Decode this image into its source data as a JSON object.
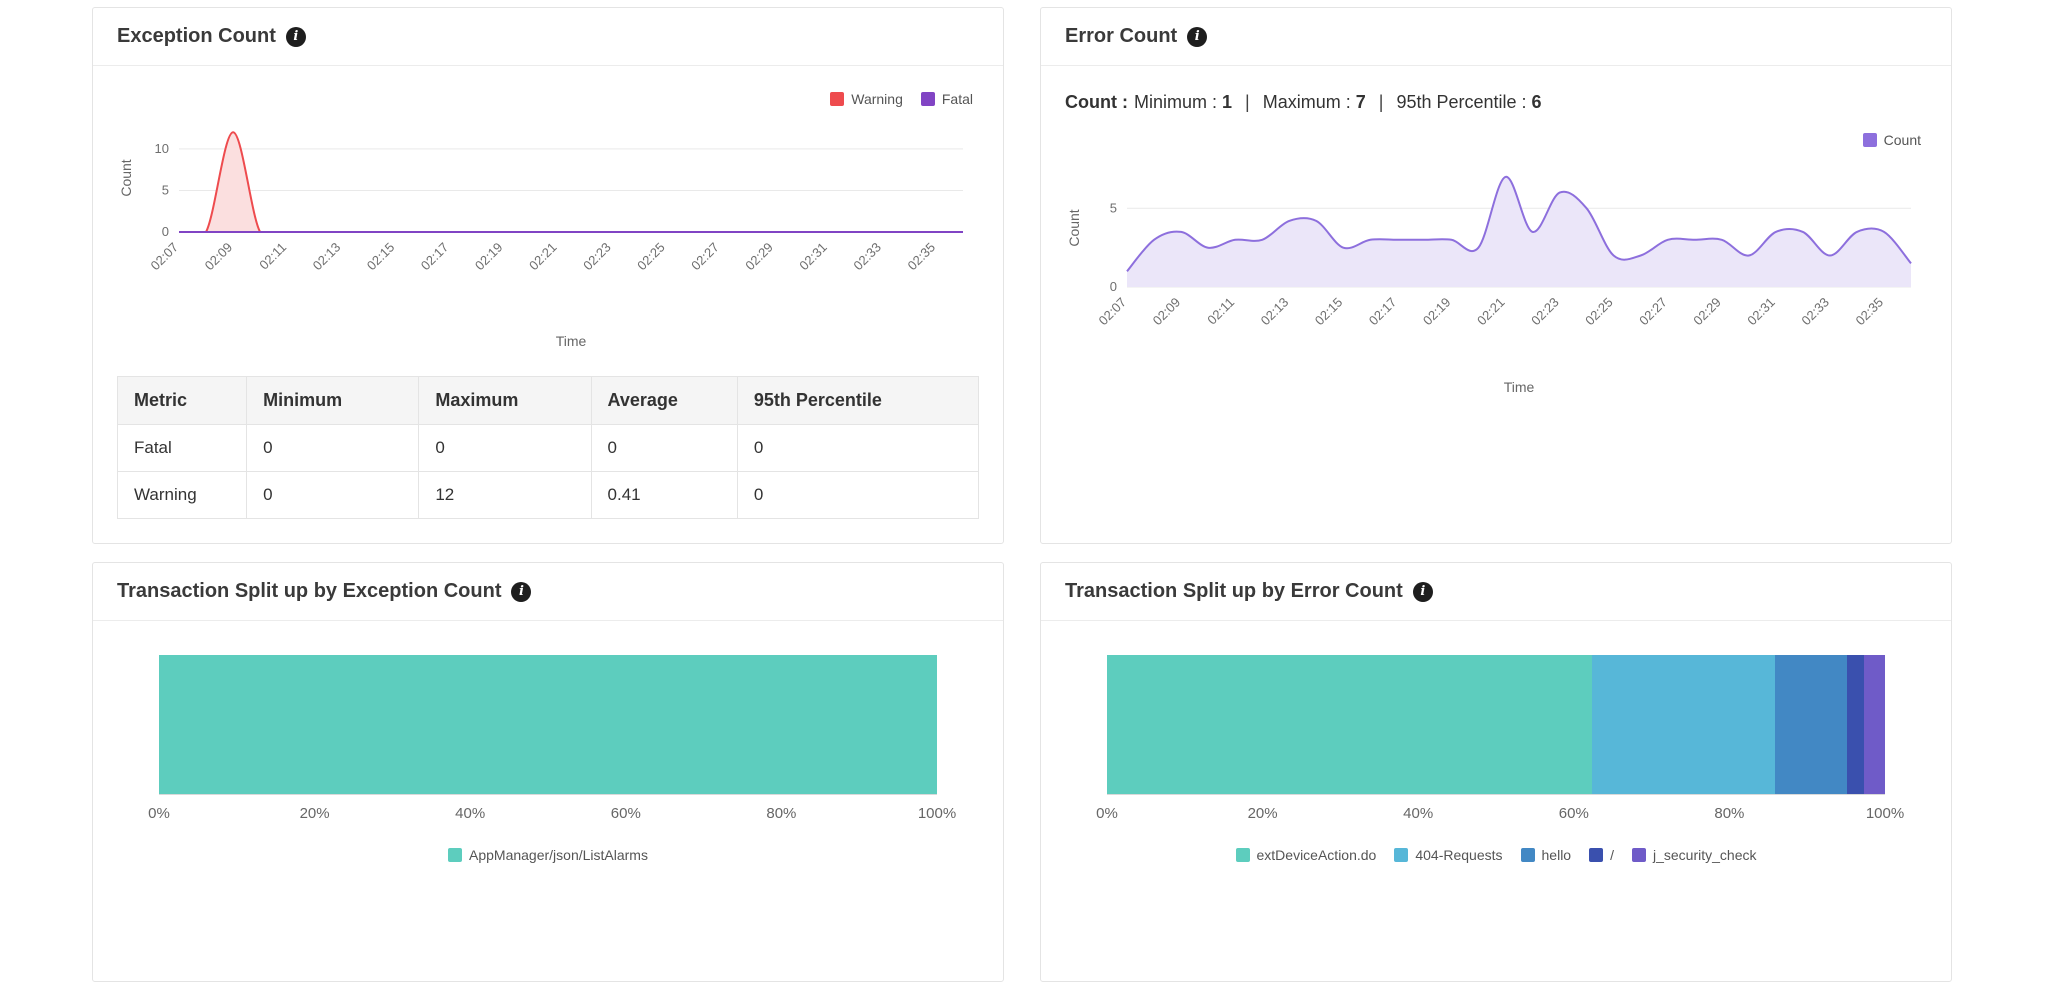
{
  "icons": {
    "info": "i"
  },
  "panels": {
    "exception": {
      "title": "Exception Count"
    },
    "error": {
      "title": "Error Count",
      "summary": {
        "metric_label": "Count :",
        "separator": "|",
        "items": [
          {
            "label": "Minimum :",
            "value": "1"
          },
          {
            "label": "Maximum :",
            "value": "7"
          },
          {
            "label": "95th Percentile :",
            "value": "6"
          }
        ]
      }
    },
    "exception_split": {
      "title": "Transaction Split up by Exception Count"
    },
    "error_split": {
      "title": "Transaction Split up by Error Count"
    }
  },
  "exception_table": {
    "headers": [
      "Metric",
      "Minimum",
      "Maximum",
      "Average",
      "95th Percentile"
    ],
    "rows": [
      [
        "Fatal",
        "0",
        "0",
        "0",
        "0"
      ],
      [
        "Warning",
        "0",
        "12",
        "0.41",
        "0"
      ]
    ]
  },
  "chart_data": [
    {
      "id": "exception-trend",
      "type": "area",
      "title": "Exception Count",
      "xlabel": "Time",
      "ylabel": "Count",
      "x": [
        "02:07",
        "02:08",
        "02:09",
        "02:10",
        "02:11",
        "02:12",
        "02:13",
        "02:14",
        "02:15",
        "02:16",
        "02:17",
        "02:18",
        "02:19",
        "02:20",
        "02:21",
        "02:22",
        "02:23",
        "02:24",
        "02:25",
        "02:26",
        "02:27",
        "02:28",
        "02:29",
        "02:30",
        "02:31",
        "02:32",
        "02:33",
        "02:34",
        "02:35",
        "02:36"
      ],
      "tick_every": 2,
      "yticks": [
        0,
        5,
        10
      ],
      "ylim": [
        0,
        13
      ],
      "grid": true,
      "legend_position": "top-right",
      "series": [
        {
          "name": "Warning",
          "color": "#ee4b4e",
          "fill": "#fbdfdf",
          "values": [
            0,
            0,
            12,
            0,
            0,
            0,
            0,
            0,
            0,
            0,
            0,
            0,
            0,
            0,
            0,
            0,
            0,
            0,
            0,
            0,
            0,
            0,
            0,
            0,
            0,
            0,
            0,
            0,
            0,
            0
          ]
        },
        {
          "name": "Fatal",
          "color": "#8144c4",
          "fill": "none",
          "values": [
            0,
            0,
            0,
            0,
            0,
            0,
            0,
            0,
            0,
            0,
            0,
            0,
            0,
            0,
            0,
            0,
            0,
            0,
            0,
            0,
            0,
            0,
            0,
            0,
            0,
            0,
            0,
            0,
            0,
            0
          ]
        }
      ]
    },
    {
      "id": "error-trend",
      "type": "area",
      "title": "Error Count",
      "xlabel": "Time",
      "ylabel": "Count",
      "x": [
        "02:07",
        "02:08",
        "02:09",
        "02:10",
        "02:11",
        "02:12",
        "02:13",
        "02:14",
        "02:15",
        "02:16",
        "02:17",
        "02:18",
        "02:19",
        "02:20",
        "02:21",
        "02:22",
        "02:23",
        "02:24",
        "02:25",
        "02:26",
        "02:27",
        "02:28",
        "02:29",
        "02:30",
        "02:31",
        "02:32",
        "02:33",
        "02:34",
        "02:35",
        "02:36"
      ],
      "tick_every": 2,
      "yticks": [
        0,
        5
      ],
      "ylim": [
        0,
        7.5
      ],
      "grid": true,
      "legend_position": "top-right",
      "summary_stats": {
        "minimum": 1,
        "maximum": 7,
        "p95": 6
      },
      "series": [
        {
          "name": "Count",
          "color": "#8d6fdd",
          "fill": "#ebe6f9",
          "values": [
            1,
            3,
            3.5,
            2.5,
            3,
            3,
            4.2,
            4.2,
            2.5,
            3,
            3,
            3,
            3,
            2.5,
            7,
            3.5,
            6,
            5,
            2,
            2,
            3,
            3,
            3,
            2,
            3.5,
            3.5,
            2,
            3.5,
            3.5,
            1.5
          ]
        }
      ]
    },
    {
      "id": "exception-split",
      "type": "stacked-bar",
      "title": "Transaction Split up by Exception Count",
      "xticks": [
        "0%",
        "20%",
        "40%",
        "60%",
        "80%",
        "100%"
      ],
      "legend_position": "bottom-center",
      "segments": [
        {
          "name": "AppManager/json/ListAlarms",
          "color": "#5dcdbe",
          "value": 100
        }
      ]
    },
    {
      "id": "error-split",
      "type": "stacked-bar",
      "title": "Transaction Split up by Error Count",
      "xticks": [
        "0%",
        "20%",
        "40%",
        "60%",
        "80%",
        "100%"
      ],
      "legend_position": "bottom-center",
      "segments": [
        {
          "name": "extDeviceAction.do",
          "color": "#5dcdbe",
          "value": 62.4
        },
        {
          "name": "404-Requests",
          "color": "#57b7d8",
          "value": 23.4
        },
        {
          "name": "hello",
          "color": "#4288c4",
          "value": 9.3
        },
        {
          "name": "/",
          "color": "#3a50ae",
          "value": 2.2
        },
        {
          "name": "j_security_check",
          "color": "#6f5bc8",
          "value": 2.7
        }
      ]
    }
  ]
}
